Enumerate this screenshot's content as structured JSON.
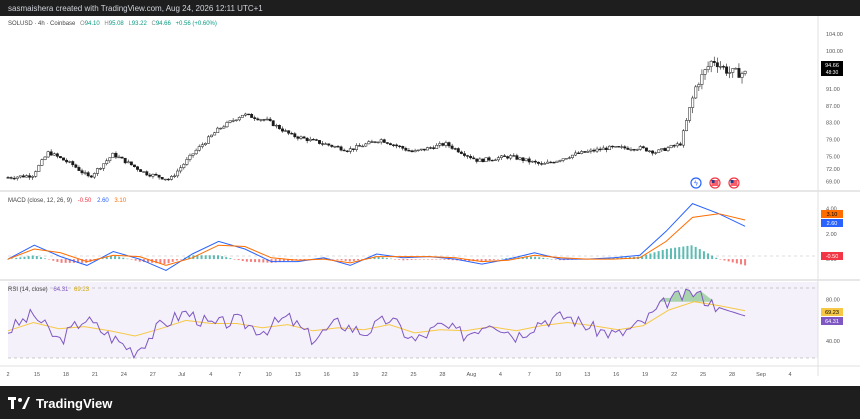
{
  "header": {
    "attribution": "sasmaishera created with TradingView.com, Aug 24, 2026 12:11 UTC+1"
  },
  "symbol": {
    "name": "SOLUSD · 4h · Coinbase",
    "O": "94.10",
    "H": "95.08",
    "L": "93.22",
    "C": "94.66",
    "change": "+0.56 (+0.60%)"
  },
  "price_tag": {
    "value": "94.66",
    "countdown": "48:30"
  },
  "macd": {
    "label": "MACD (close, 12, 26, 9)",
    "v1": "-0.50",
    "v2": "2.60",
    "v3": "3.10"
  },
  "rsi": {
    "label": "RSI (14, close)",
    "v1": "64.31",
    "v2": "69.23"
  },
  "brand": {
    "name": "TradingView",
    "logo": "tradingview-logo"
  },
  "colors": {
    "up": "#089981",
    "down": "#f23645",
    "candle": "#1a1a1a",
    "macd": "#2962ff",
    "signal": "#ff6d00",
    "rsi": "#7e57c2",
    "rsi_ma": "#f7c846"
  },
  "chart_data": [
    {
      "type": "candlestick",
      "title": "SOLUSD · 4h · Coinbase",
      "ylim": [
        67.5,
        105
      ],
      "yticks": [
        "104.00",
        "100.00",
        "95.00",
        "91.00",
        "87.00",
        "83.00",
        "79.00",
        "75.00",
        "72.00",
        "69.00"
      ],
      "xticks": [
        "2",
        "15",
        "18",
        "21",
        "24",
        "27",
        "Jul",
        "4",
        "7",
        "10",
        "13",
        "16",
        "19",
        "22",
        "25",
        "28",
        "Aug",
        "4",
        "7",
        "10",
        "13",
        "16",
        "19",
        "22",
        "25",
        "28",
        "Sep",
        "4"
      ],
      "close_path": [
        {
          "x": 0,
          "y": 70.0
        },
        {
          "x": 0.03,
          "y": 70.5
        },
        {
          "x": 0.05,
          "y": 76.0
        },
        {
          "x": 0.08,
          "y": 73.0
        },
        {
          "x": 0.1,
          "y": 70.0
        },
        {
          "x": 0.13,
          "y": 75.5
        },
        {
          "x": 0.17,
          "y": 71.0
        },
        {
          "x": 0.2,
          "y": 69.5
        },
        {
          "x": 0.23,
          "y": 76.0
        },
        {
          "x": 0.26,
          "y": 81.5
        },
        {
          "x": 0.29,
          "y": 85.0
        },
        {
          "x": 0.32,
          "y": 83.5
        },
        {
          "x": 0.35,
          "y": 80.0
        },
        {
          "x": 0.39,
          "y": 78.0
        },
        {
          "x": 0.42,
          "y": 76.5
        },
        {
          "x": 0.46,
          "y": 79.0
        },
        {
          "x": 0.5,
          "y": 76.0
        },
        {
          "x": 0.54,
          "y": 78.0
        },
        {
          "x": 0.58,
          "y": 74.0
        },
        {
          "x": 0.62,
          "y": 75.0
        },
        {
          "x": 0.66,
          "y": 73.0
        },
        {
          "x": 0.7,
          "y": 75.5
        },
        {
          "x": 0.74,
          "y": 77.0
        },
        {
          "x": 0.78,
          "y": 77.0
        },
        {
          "x": 0.8,
          "y": 76.0
        },
        {
          "x": 0.83,
          "y": 78.0
        },
        {
          "x": 0.85,
          "y": 92.0
        },
        {
          "x": 0.87,
          "y": 98.0
        },
        {
          "x": 0.89,
          "y": 95.0
        },
        {
          "x": 0.91,
          "y": 94.66
        }
      ],
      "events": [
        "lightning-icon",
        "us-flag-icon",
        "us-flag-icon"
      ]
    },
    {
      "type": "line",
      "title": "MACD (close, 12, 26, 9)",
      "ylim": [
        -1.5,
        5.0
      ],
      "yticks": [
        "4.00",
        "2.00",
        "0.00"
      ],
      "series": [
        {
          "name": "MACD",
          "values": [
            0,
            1.1,
            0.2,
            -0.5,
            0.6,
            0.0,
            -0.9,
            0.4,
            1.4,
            0.8,
            -0.2,
            -0.2,
            0.1,
            -0.5,
            0.4,
            0.1,
            0.2,
            0.0,
            -0.4,
            0.0,
            0.5,
            0.0,
            0.0,
            0.1,
            0.3,
            2.2,
            4.4,
            3.6,
            2.6
          ]
        },
        {
          "name": "Signal",
          "values": [
            0,
            0.8,
            0.5,
            -0.2,
            0.3,
            0.2,
            -0.5,
            0.1,
            1.1,
            1.0,
            0.1,
            -0.1,
            0.0,
            -0.3,
            0.2,
            0.2,
            0.2,
            0.1,
            -0.2,
            -0.1,
            0.3,
            0.1,
            0.0,
            0.0,
            0.1,
            1.4,
            3.3,
            3.6,
            3.1
          ]
        }
      ]
    },
    {
      "type": "line",
      "title": "RSI (14, close)",
      "ylim": [
        20,
        95
      ],
      "yticks": [
        "80.00",
        "40.00"
      ],
      "series": [
        {
          "name": "RSI",
          "values": [
            50,
            66,
            40,
            62,
            45,
            30,
            55,
            68,
            55,
            60,
            50,
            63,
            42,
            58,
            48,
            62,
            40,
            55,
            46,
            60,
            45,
            60,
            64,
            52,
            46,
            58,
            80,
            87,
            72,
            64.31
          ]
        },
        {
          "name": "RSI MA",
          "values": [
            50,
            58,
            52,
            54,
            50,
            45,
            52,
            60,
            57,
            57,
            53,
            56,
            50,
            53,
            51,
            56,
            48,
            51,
            50,
            54,
            50,
            55,
            58,
            55,
            51,
            55,
            70,
            78,
            74,
            69.23
          ]
        }
      ]
    }
  ]
}
